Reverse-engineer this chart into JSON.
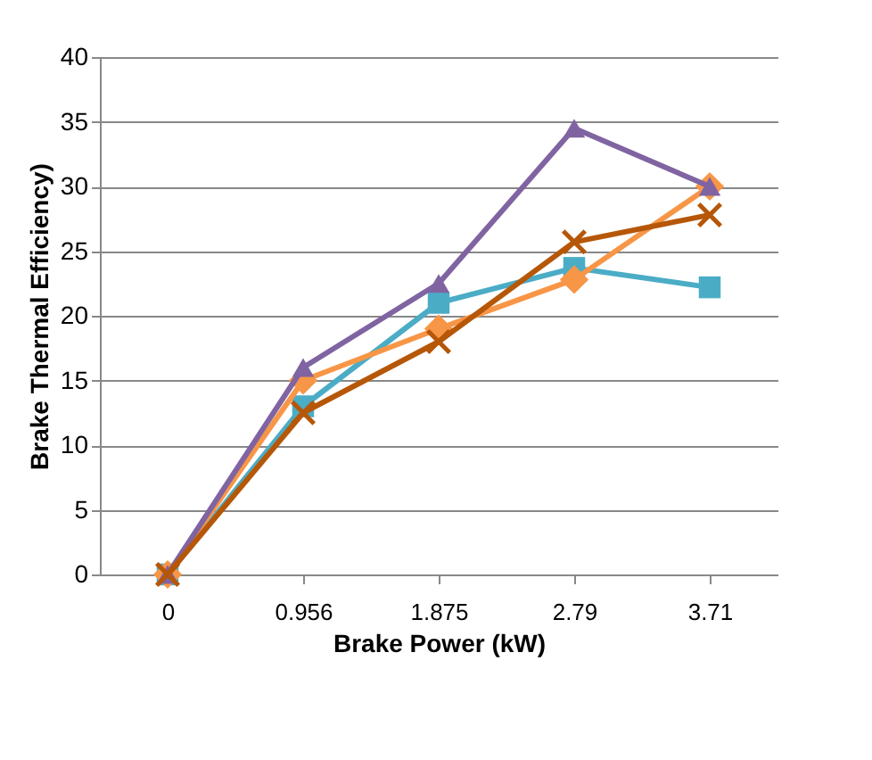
{
  "chart_data": {
    "type": "line",
    "xlabel": "Brake Power (kW)",
    "ylabel": "Brake Thermal Efficiency)",
    "categories": [
      "0",
      "0.956",
      "1.875",
      "2.79",
      "3.71"
    ],
    "series": [
      {
        "color": "#4bacc6",
        "marker": "square",
        "values": [
          0,
          13,
          21,
          23.7,
          22.2
        ]
      },
      {
        "color": "#f79646",
        "marker": "diamond",
        "values": [
          0,
          15,
          19,
          22.8,
          30
        ]
      },
      {
        "color": "#8064a2",
        "marker": "triangle",
        "values": [
          0,
          16,
          22.5,
          34.5,
          30
        ]
      },
      {
        "color": "#b65708",
        "marker": "cross",
        "values": [
          0,
          12.5,
          18,
          25.7,
          27.8
        ]
      }
    ],
    "ylim": [
      0,
      40
    ],
    "yticks": [
      0,
      5,
      10,
      15,
      20,
      25,
      30,
      35,
      40
    ],
    "grid": "y",
    "line_style": "solid"
  }
}
